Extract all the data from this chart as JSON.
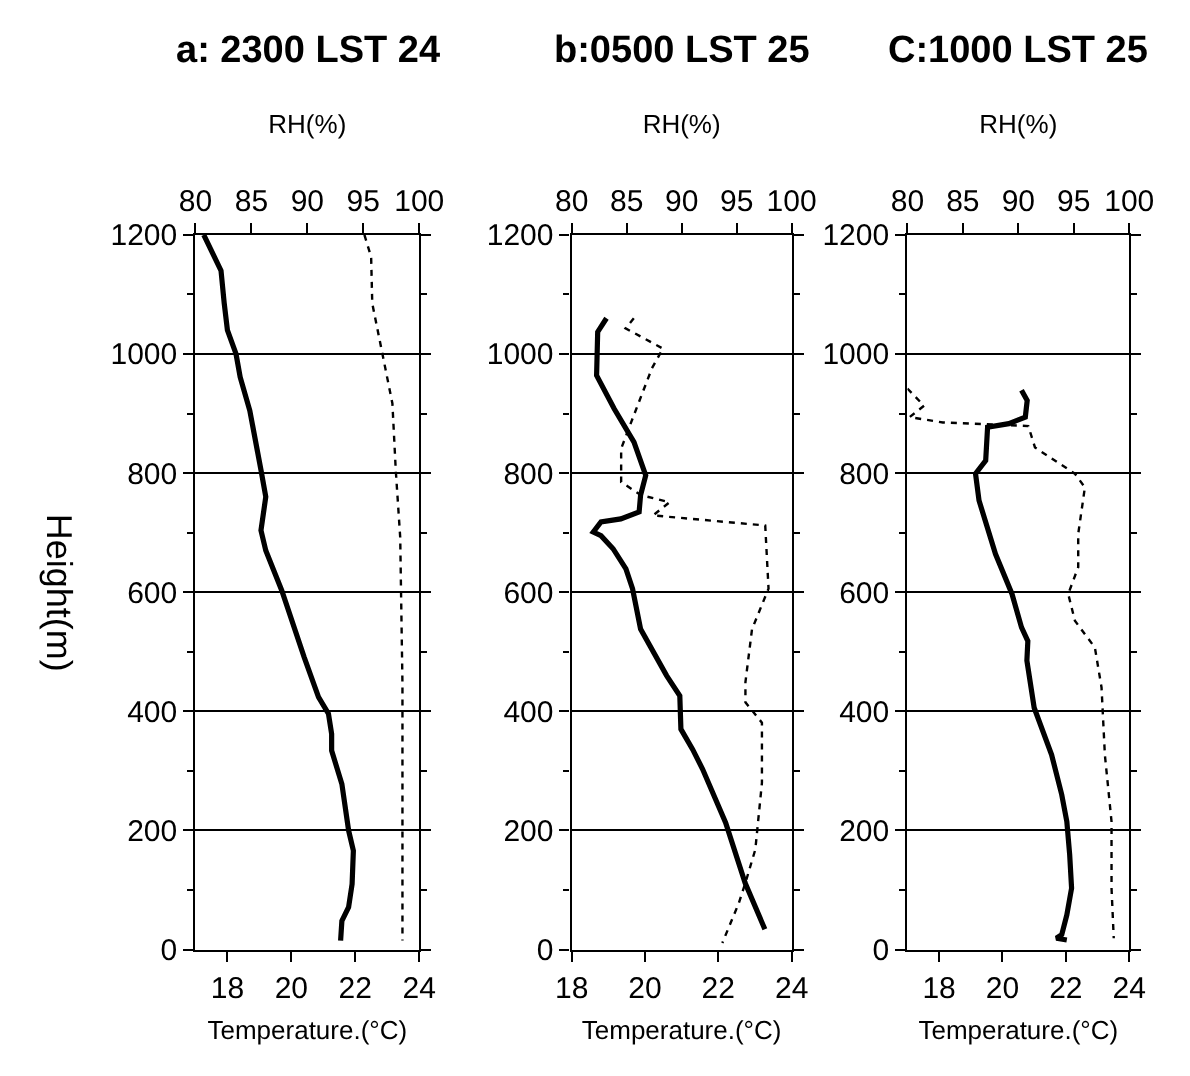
{
  "chart_data": [
    {
      "type": "line",
      "title": "a: 2300 LST 24",
      "xlabel": "Temperature.(°C)",
      "x2label": "RH(%)",
      "ylabel": "Height(m)",
      "xlim": [
        17,
        24
      ],
      "xticks": [
        18,
        20,
        22,
        24
      ],
      "x2lim": [
        80,
        100
      ],
      "x2ticks": [
        80,
        85,
        90,
        95,
        100
      ],
      "ylim": [
        0,
        1200
      ],
      "yticks": [
        0,
        {
          "value": 100,
          "label": null
        },
        200,
        {
          "value": 300,
          "label": null
        },
        400,
        {
          "value": 500,
          "label": null
        },
        600,
        {
          "value": 700,
          "label": null
        },
        800,
        {
          "value": 900,
          "label": null
        },
        1000,
        {
          "value": 1100,
          "label": null
        },
        1200
      ],
      "grid": "y",
      "marker": "none",
      "series": [
        {
          "color": "#000000",
          "line_style": "solid",
          "x": [
            17.26,
            17.8,
            17.9,
            18.0,
            18.27,
            18.4,
            18.7,
            19.05,
            19.2,
            19.05,
            19.2,
            19.7,
            20.4,
            20.85,
            21.16,
            21.26,
            21.26,
            21.58,
            21.79,
            21.94,
            21.9,
            21.79,
            21.58,
            21.54
          ],
          "values": [
            1200,
            1140,
            1085,
            1040,
            1000,
            961,
            905,
            805,
            760,
            704,
            670,
            603,
            491,
            424,
            396,
            362,
            334,
            278,
            200,
            166,
            110,
            71,
            48,
            15
          ]
        },
        {
          "color": "#000000",
          "line_style": "dotted",
          "axis": "x2",
          "x": [
            95.1,
            95.7,
            95.8,
            97.0,
            97.6,
            97.9,
            98.3,
            98.5,
            98.5,
            98.5
          ],
          "values": [
            1200,
            1163,
            1085,
            973,
            917,
            805,
            692,
            446,
            222,
            15
          ]
        }
      ]
    },
    {
      "type": "line",
      "title": "b:0500 LST 25",
      "xlabel": "Temperature.(°C)",
      "x2label": "RH(%)",
      "xlim": [
        18,
        24
      ],
      "xticks": [
        18,
        20,
        22,
        24
      ],
      "x2lim": [
        80,
        100
      ],
      "x2ticks": [
        80,
        85,
        90,
        95,
        100
      ],
      "ylim": [
        0,
        1200
      ],
      "yticks": [
        0,
        {
          "value": 100,
          "label": null
        },
        200,
        {
          "value": 300,
          "label": null
        },
        400,
        {
          "value": 500,
          "label": null
        },
        600,
        {
          "value": 700,
          "label": null
        },
        800,
        {
          "value": 900,
          "label": null
        },
        1000,
        {
          "value": 1100,
          "label": null
        },
        1200
      ],
      "grid": "y",
      "marker": "none",
      "series": [
        {
          "color": "#000000",
          "line_style": "solid",
          "x": [
            18.95,
            18.71,
            18.68,
            19.16,
            19.7,
            20.02,
            19.88,
            19.84,
            19.34,
            18.8,
            18.59,
            18.8,
            19.13,
            19.48,
            19.66,
            19.88,
            20.59,
            20.95,
            20.98,
            21.3,
            21.57,
            22.2,
            22.73,
            23.27
          ],
          "values": [
            1060,
            1037,
            964,
            908,
            852,
            796,
            763,
            735,
            723,
            718,
            701,
            695,
            673,
            639,
            606,
            538,
            460,
            426,
            370,
            336,
            303,
            213,
            112,
            34
          ]
        },
        {
          "color": "#000000",
          "line_style": "dotted",
          "axis": "x2",
          "x": [
            85.65,
            84.9,
            88.3,
            87.3,
            85.65,
            84.5,
            84.5,
            86.3,
            88.9,
            87.4,
            97.6,
            97.9,
            96.4,
            95.8,
            95.8,
            97.3,
            97.3,
            96.7,
            95.8,
            95.2,
            93.7
          ],
          "values": [
            1060,
            1043,
            1009,
            976,
            897,
            841,
            785,
            763,
            751,
            729,
            712,
            606,
            538,
            449,
            415,
            381,
            280,
            168,
            112,
            78,
            11
          ]
        }
      ]
    },
    {
      "type": "line",
      "title": "C:1000 LST 25",
      "xlabel": "Temperature.(°C)",
      "x2label": "RH(%)",
      "xlim": [
        17,
        24
      ],
      "xticks": [
        18,
        20,
        22,
        24
      ],
      "x2lim": [
        80,
        100
      ],
      "x2ticks": [
        80,
        85,
        90,
        95,
        100
      ],
      "ylim": [
        0,
        1200
      ],
      "yticks": [
        0,
        {
          "value": 100,
          "label": null
        },
        200,
        {
          "value": 300,
          "label": null
        },
        400,
        {
          "value": 500,
          "label": null
        },
        600,
        {
          "value": 700,
          "label": null
        },
        800,
        {
          "value": 900,
          "label": null
        },
        1000,
        {
          "value": 1100,
          "label": null
        },
        1200
      ],
      "grid": "y",
      "marker": "none",
      "series": [
        {
          "color": "#000000",
          "line_style": "solid",
          "x": [
            20.6,
            20.78,
            20.72,
            20.2,
            19.53,
            19.47,
            19.15,
            19.26,
            19.78,
            20.3,
            20.6,
            20.8,
            20.77,
            21.0,
            21.55,
            21.87,
            22.03,
            22.12,
            22.18,
            22.03,
            21.87,
            21.7,
            22.03
          ],
          "values": [
            939,
            922,
            894,
            883,
            877,
            821,
            799,
            754,
            664,
            597,
            541,
            518,
            485,
            406,
            327,
            260,
            215,
            159,
            103,
            58,
            25,
            19,
            16
          ]
        },
        {
          "color": "#000000",
          "line_style": "dotted",
          "axis": "x2",
          "x": [
            80.0,
            81.5,
            80.2,
            83.2,
            90.9,
            91.5,
            95.1,
            96.0,
            95.4,
            95.4,
            94.5,
            95.1,
            96.9,
            97.5,
            97.8,
            98.4,
            98.4,
            98.6
          ],
          "values": [
            942,
            913,
            894,
            885,
            879,
            843,
            799,
            776,
            698,
            642,
            597,
            552,
            507,
            440,
            327,
            215,
            103,
            19
          ]
        }
      ]
    }
  ]
}
